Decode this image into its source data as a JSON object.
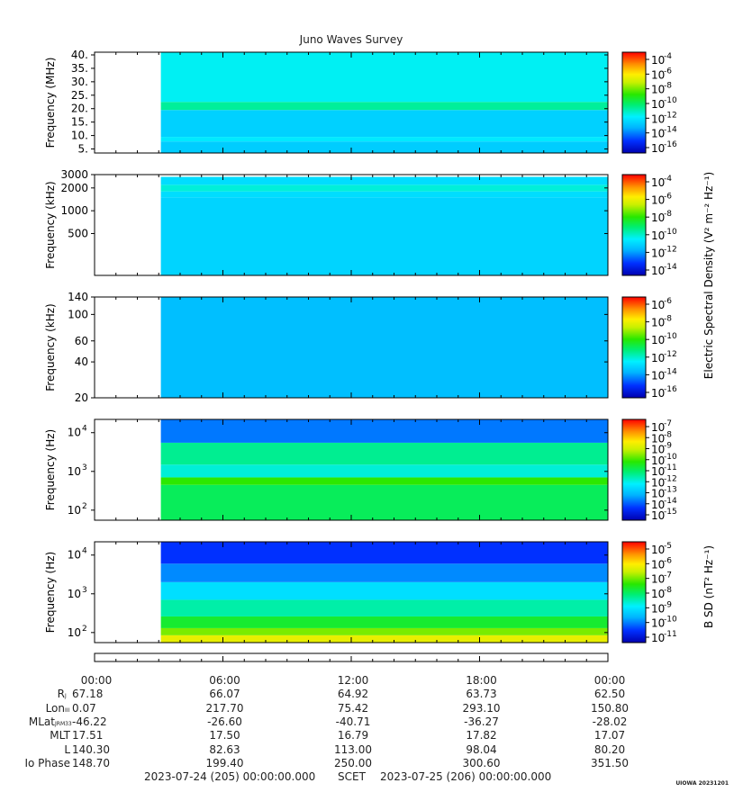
{
  "title": "Juno Waves Survey",
  "cbar_label_efield": "Electric Spectral Density (V² m⁻² Hz⁻¹)",
  "cbar_label_bfield": "B SD (nT² Hz⁻¹)",
  "credit": "UIOWA 20231201",
  "chart_data": [
    {
      "type": "heatmap",
      "ylabel": "Frequency (MHz)",
      "yscale": "linear",
      "ylim": [
        3.5,
        41
      ],
      "yticks": [
        {
          "v": 5,
          "l": "5."
        },
        {
          "v": 10,
          "l": "10."
        },
        {
          "v": 15,
          "l": "15."
        },
        {
          "v": 20,
          "l": "20."
        },
        {
          "v": 25,
          "l": "25."
        },
        {
          "v": 30,
          "l": "30."
        },
        {
          "v": 35,
          "l": "35."
        },
        {
          "v": 40,
          "l": "40."
        }
      ],
      "data_start_hour": 3.1,
      "colorbar": {
        "ticks": [
          "-4",
          "-6",
          "-8",
          "-10",
          "-12",
          "-14",
          "-16"
        ],
        "range": [
          -17,
          -3.5
        ]
      },
      "bands": [
        {
          "y0": 3.5,
          "y1": 7.8,
          "level": -13.0
        },
        {
          "y0": 7.8,
          "y1": 9.5,
          "level": -12.3
        },
        {
          "y0": 9.5,
          "y1": 19.5,
          "level": -12.9
        },
        {
          "y0": 19.5,
          "y1": 22.5,
          "level": -11.0
        },
        {
          "y0": 22.5,
          "y1": 41,
          "level": -12.0
        }
      ]
    },
    {
      "type": "heatmap",
      "ylabel": "Frequency (kHz)",
      "yscale": "log",
      "ylim": [
        140,
        3000
      ],
      "yticks": [
        {
          "v": 500,
          "l": "500"
        },
        {
          "v": 1000,
          "l": "1000"
        },
        {
          "v": 2000,
          "l": "2000"
        },
        {
          "v": 3000,
          "l": "3000"
        }
      ],
      "data_start_hour": 3.1,
      "colorbar": {
        "ticks": [
          "-4",
          "-6",
          "-8",
          "-10",
          "-12",
          "-14"
        ],
        "range": [
          -15.5,
          -3.5
        ]
      },
      "bands": [
        {
          "y0": 140,
          "y1": 1500,
          "level": -11.8
        },
        {
          "y0": 1500,
          "y1": 1800,
          "level": -11.6
        },
        {
          "y0": 1800,
          "y1": 2200,
          "level": -10.8
        },
        {
          "y0": 2200,
          "y1": 2800,
          "level": -11.6
        }
      ]
    },
    {
      "type": "heatmap",
      "ylabel": "Frequency (kHz)",
      "yscale": "log",
      "ylim": [
        20,
        140
      ],
      "yticks": [
        {
          "v": 20,
          "l": "20"
        },
        {
          "v": 40,
          "l": "40"
        },
        {
          "v": 60,
          "l": "60"
        },
        {
          "v": 100,
          "l": "100"
        },
        {
          "v": 140,
          "l": "140"
        }
      ],
      "data_start_hour": 3.1,
      "colorbar": {
        "ticks": [
          "-6",
          "-8",
          "-10",
          "-12",
          "-14",
          "-16"
        ],
        "range": [
          -17,
          -5.5
        ]
      },
      "bands": [
        {
          "y0": 20,
          "y1": 140,
          "level": -13.9
        }
      ]
    },
    {
      "type": "heatmap",
      "ylabel": "Frequency (Hz)",
      "yscale": "log",
      "ylim": [
        55,
        22000
      ],
      "yticks": [
        {
          "v": 100,
          "l": "10",
          "e": "2"
        },
        {
          "v": 1000,
          "l": "10",
          "e": "3"
        },
        {
          "v": 10000,
          "l": "10",
          "e": "4"
        }
      ],
      "data_start_hour": 3.1,
      "colorbar": {
        "ticks": [
          "-7",
          "-8",
          "-9",
          "-10",
          "-11",
          "-12",
          "-13",
          "-14",
          "-15"
        ],
        "range": [
          -15.2,
          -6.8
        ]
      },
      "bands": [
        {
          "y0": 55,
          "y1": 450,
          "level": -11.0
        },
        {
          "y0": 450,
          "y1": 700,
          "level": -10.3
        },
        {
          "y0": 700,
          "y1": 1500,
          "level": -11.9
        },
        {
          "y0": 1500,
          "y1": 5500,
          "level": -11.4
        },
        {
          "y0": 5500,
          "y1": 22000,
          "level": -13.6
        }
      ]
    },
    {
      "type": "heatmap",
      "ylabel": "Frequency (Hz)",
      "yscale": "log",
      "ylim": [
        55,
        22000
      ],
      "yticks": [
        {
          "v": 100,
          "l": "10",
          "e": "2"
        },
        {
          "v": 1000,
          "l": "10",
          "e": "3"
        },
        {
          "v": 10000,
          "l": "10",
          "e": "4"
        }
      ],
      "data_start_hour": 3.1,
      "colorbar": {
        "ticks": [
          "-5",
          "-6",
          "-7",
          "-8",
          "-9",
          "-10",
          "-11"
        ],
        "range": [
          -11.2,
          -4.5
        ]
      },
      "bands": [
        {
          "y0": 55,
          "y1": 85,
          "level": -6.2
        },
        {
          "y0": 85,
          "y1": 130,
          "level": -6.9
        },
        {
          "y0": 130,
          "y1": 260,
          "level": -7.6
        },
        {
          "y0": 260,
          "y1": 700,
          "level": -8.3
        },
        {
          "y0": 700,
          "y1": 2000,
          "level": -9.0
        },
        {
          "y0": 2000,
          "y1": 6000,
          "level": -9.8
        },
        {
          "y0": 6000,
          "y1": 22000,
          "level": -10.4
        }
      ]
    }
  ],
  "time_axis": {
    "xlim_hours": [
      0,
      24
    ],
    "major_ticks_hours": [
      0,
      6,
      12,
      18,
      24
    ],
    "minor_step_hours": 1,
    "labels": [
      "00:00",
      "06:00",
      "12:00",
      "18:00",
      "00:00"
    ]
  },
  "ephemeris": {
    "rows": [
      {
        "label": "R",
        "sub": "J",
        "values": [
          "67.18",
          "66.07",
          "64.92",
          "63.73",
          "62.50"
        ]
      },
      {
        "label": "Lon",
        "sub": "III",
        "values": [
          "0.07",
          "217.70",
          "75.42",
          "293.10",
          "150.80"
        ]
      },
      {
        "label": "MLat",
        "sub": "JRM33",
        "values": [
          "-46.22",
          "-26.60",
          "-40.71",
          "-36.27",
          "-28.02"
        ]
      },
      {
        "label": "MLT",
        "sub": "",
        "values": [
          "17.51",
          "17.50",
          "16.79",
          "17.82",
          "17.07"
        ]
      },
      {
        "label": "L",
        "sub": "",
        "values": [
          "140.30",
          "82.63",
          "113.00",
          "98.04",
          "80.20"
        ]
      },
      {
        "label": "Io Phase",
        "sub": "",
        "values": [
          "148.70",
          "199.40",
          "250.00",
          "300.60",
          "351.50"
        ]
      }
    ],
    "footer_start": "2023-07-24 (205) 00:00:00.000",
    "footer_mid": "SCET",
    "footer_end": "2023-07-25 (206) 00:00:00.000"
  }
}
